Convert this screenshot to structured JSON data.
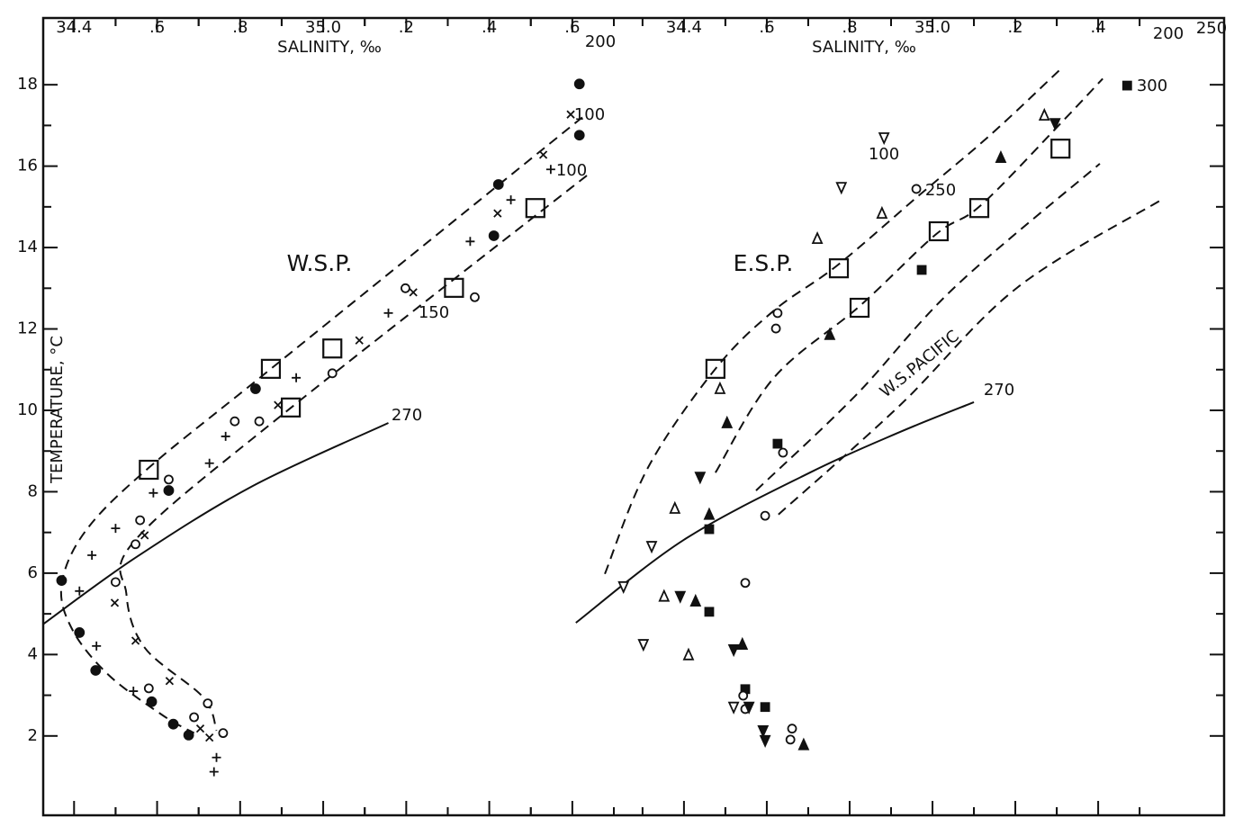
{
  "chart_data": [
    {
      "type": "scatter",
      "xlabel": "SALINITY, ‰",
      "ylabel": "TEMPERATURE, °C",
      "xlim": [
        34.304,
        35.739
      ],
      "xticks": [
        34.4,
        {
          "value": 34.6,
          "label": ".6"
        },
        {
          "value": 34.8,
          "label": ".8"
        },
        {
          "value": 35.0,
          "label": "35.0"
        },
        {
          "value": 35.2,
          "label": ".2"
        },
        {
          "value": 35.4,
          "label": ".4"
        },
        {
          "value": 35.6,
          "label": ".6"
        }
      ],
      "ylim": [
        0.05,
        19.64
      ],
      "yticks": [
        2,
        4,
        6,
        8,
        10,
        12,
        14,
        16,
        18
      ],
      "annotations": [
        "W.S.P.",
        "100",
        "100",
        "150",
        "200",
        "270"
      ],
      "series": [
        {
          "line": "dashed",
          "x": [
            35.624,
            34.874,
            34.58,
            34.428,
            34.37,
            34.396,
            34.483,
            34.613,
            34.689
          ],
          "y": [
            17.2,
            11.02,
            8.59,
            7.04,
            5.71,
            4.61,
            3.5,
            2.51,
            2.07
          ]
        },
        {
          "line": "dashed",
          "x": [
            35.635,
            34.917,
            34.548,
            34.526,
            34.57,
            34.711,
            34.743
          ],
          "y": [
            15.77,
            10.02,
            6.82,
            5.49,
            4.17,
            2.95,
            2.13
          ]
        },
        {
          "line": "solid",
          "x": [
            34.326,
            34.548,
            34.83,
            35.157
          ],
          "y": [
            4.75,
            6.38,
            8.14,
            9.69
          ]
        },
        {
          "marker": "square",
          "x": [
            34.58,
            34.874,
            35.022,
            34.922,
            35.315,
            35.511
          ],
          "y": [
            8.54,
            11.02,
            11.52,
            10.07,
            13.01,
            14.97
          ]
        },
        {
          "marker": "filled-circle",
          "x": [
            35.617,
            35.617,
            35.422,
            35.411,
            34.837,
            34.628,
            34.37,
            34.413,
            34.452,
            34.587,
            34.639,
            34.676
          ],
          "y": [
            18.02,
            16.76,
            15.55,
            14.29,
            10.53,
            8.03,
            5.82,
            4.54,
            3.61,
            2.84,
            2.29,
            2.02
          ]
        },
        {
          "marker": "open-circle",
          "x": [
            35.198,
            35.365,
            35.022,
            34.846,
            34.787,
            34.628,
            34.559,
            34.548,
            34.5,
            34.58,
            34.722,
            34.689,
            34.759
          ],
          "y": [
            13.0,
            12.78,
            10.91,
            9.73,
            9.73,
            8.3,
            7.3,
            6.71,
            5.78,
            3.17,
            2.8,
            2.46,
            2.07
          ]
        },
        {
          "marker": "cross",
          "x": [
            35.596,
            35.53,
            35.42,
            35.217,
            35.087,
            34.891,
            34.57,
            34.498,
            34.548,
            34.63,
            34.704,
            34.726
          ],
          "y": [
            17.27,
            16.28,
            14.84,
            12.9,
            11.72,
            10.13,
            6.93,
            5.27,
            4.34,
            3.35,
            2.18,
            1.96
          ]
        },
        {
          "marker": "plus",
          "x": [
            35.548,
            35.452,
            35.354,
            35.157,
            34.935,
            34.765,
            34.726,
            34.591,
            34.5,
            34.443,
            34.413,
            34.454,
            34.543,
            34.743,
            34.737
          ],
          "y": [
            15.92,
            15.17,
            14.15,
            12.39,
            10.8,
            9.36,
            8.7,
            7.97,
            7.1,
            6.44,
            5.56,
            4.21,
            3.1,
            1.47,
            1.12
          ]
        }
      ]
    },
    {
      "type": "scatter",
      "xlabel": "SALINITY, ‰",
      "xlim": [
        34.096,
        35.704
      ],
      "xticks": [
        34.4,
        {
          "value": 34.6,
          "label": ".6"
        },
        {
          "value": 34.8,
          "label": ".8"
        },
        {
          "value": 35.0,
          "label": "35.0"
        },
        {
          "value": 35.2,
          "label": ".2"
        },
        {
          "value": 35.4,
          "label": ".4"
        }
      ],
      "annotations": [
        "E.S.P.",
        "W.S.PACIFIC",
        "270",
        "100",
        "250",
        "300",
        "200",
        "250"
      ],
      "series": [
        {
          "line": "dashed",
          "x": [
            34.209,
            34.313,
            34.476,
            34.617,
            34.77,
            34.965,
            35.139,
            35.313
          ],
          "y": [
            5.98,
            8.59,
            11.02,
            12.45,
            13.56,
            15.26,
            16.76,
            18.42
          ]
        },
        {
          "line": "dashed",
          "x": [
            34.476,
            34.617,
            34.824,
            35.009,
            35.117,
            35.313,
            35.411
          ],
          "y": [
            8.47,
            10.8,
            12.56,
            14.33,
            15.04,
            17.09,
            18.15
          ]
        },
        {
          "line": "dashed",
          "x": [
            34.574,
            34.813,
            35.052,
            35.404
          ],
          "y": [
            8.03,
            10.35,
            13.01,
            16.06
          ]
        },
        {
          "line": "dashed",
          "x": [
            34.628,
            34.922,
            35.204,
            35.552
          ],
          "y": [
            7.44,
            10.13,
            13.01,
            15.17
          ]
        },
        {
          "line": "solid",
          "x": [
            34.139,
            34.4,
            34.704,
            34.922,
            35.1
          ],
          "y": [
            4.78,
            6.82,
            8.47,
            9.47,
            10.2
          ]
        },
        {
          "marker": "square",
          "x": [
            34.476,
            34.774,
            34.824,
            35.015,
            35.113,
            35.309
          ],
          "y": [
            11.02,
            13.49,
            12.52,
            14.4,
            14.97,
            16.43
          ]
        },
        {
          "marker": "filled-square",
          "x": [
            35.47,
            34.974,
            34.626,
            34.461,
            34.461,
            34.548,
            34.596
          ],
          "y": [
            17.98,
            13.45,
            9.18,
            7.08,
            5.05,
            3.15,
            2.71
          ]
        },
        {
          "marker": "open-circle",
          "x": [
            34.961,
            34.626,
            34.622,
            34.639,
            34.596,
            34.548,
            34.543,
            34.548,
            34.661,
            34.657
          ],
          "y": [
            15.44,
            12.39,
            12.01,
            8.96,
            7.41,
            5.76,
            2.99,
            2.66,
            2.18,
            1.91
          ]
        },
        {
          "marker": "open-triangle",
          "x": [
            35.27,
            34.878,
            34.722,
            34.487,
            34.378,
            34.352,
            34.411
          ],
          "y": [
            17.25,
            14.84,
            14.22,
            10.53,
            7.59,
            5.43,
            3.99
          ]
        },
        {
          "marker": "filled-triangle",
          "x": [
            35.165,
            34.752,
            34.504,
            34.461,
            34.428,
            34.541,
            34.689
          ],
          "y": [
            16.21,
            11.86,
            9.69,
            7.44,
            5.31,
            4.25,
            1.78
          ]
        },
        {
          "marker": "open-triangle-down",
          "x": [
            34.883,
            34.78,
            34.322,
            34.254,
            34.302,
            34.52
          ],
          "y": [
            16.7,
            15.48,
            6.66,
            5.67,
            4.25,
            2.71
          ]
        },
        {
          "marker": "filled-triangle-down",
          "x": [
            35.296,
            34.439,
            34.391,
            34.52,
            34.557,
            34.591,
            34.596
          ],
          "y": [
            17.05,
            8.36,
            5.43,
            4.12,
            2.71,
            2.13,
            1.89
          ]
        }
      ]
    }
  ]
}
